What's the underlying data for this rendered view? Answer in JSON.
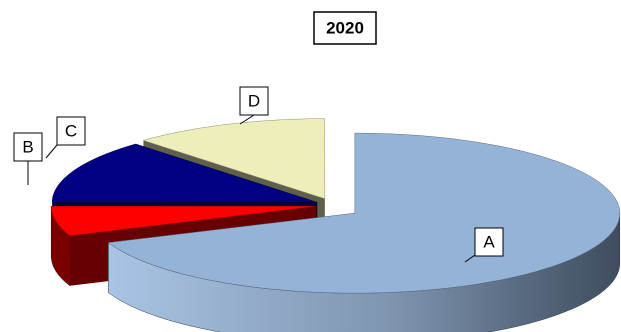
{
  "chart_data": {
    "type": "pie",
    "title": "2020",
    "categories": [
      "A",
      "B",
      "C",
      "D"
    ],
    "values": [
      69,
      6,
      13,
      12
    ],
    "colors": [
      "#95b3d7",
      "#ff0000",
      "#000080",
      "#eeeebb"
    ]
  }
}
